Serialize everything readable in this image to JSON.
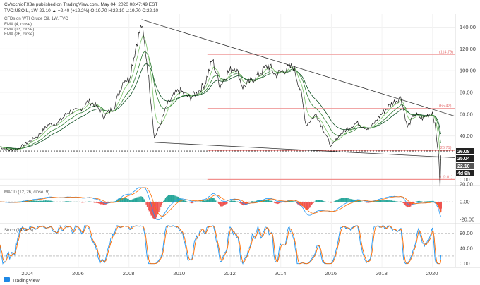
{
  "header": {
    "line1": "CVecchioFX3e published on TradingView.com, May 04, 2020 08:47:49 EST",
    "line2": "TVC:USOIL, 1W  22.10  ▲ +2.40 (+12.2%)  O:19.70  H:22.10  L:19.70  C:22.10",
    "line3": "CFDs on WTI Crude Oil, 1W, TVC",
    "ema_labels": [
      "EMA (4, close)",
      "EMA (13, close)",
      "EMA (26, close)"
    ]
  },
  "footer": {
    "brand": "TradingView"
  },
  "colors": {
    "price": "#1a1a1a",
    "ema4": "#7cc36a",
    "ema13": "#2e7d32",
    "ema26": "#0b4d1f",
    "fib": "#ef5350",
    "trend": "#333333",
    "macd": "#2196f3",
    "signal": "#ff6d00",
    "hist_up": "#26a69a",
    "hist_down": "#ef5350",
    "stoch_k": "#2196f3",
    "stoch_d": "#ff6d00"
  },
  "chart_data": [
    {
      "type": "line",
      "y_ticks": [
        0,
        20,
        40,
        60,
        80,
        100,
        120,
        140
      ],
      "y_tick_labels": [
        "0.00",
        "20.00",
        "40.00",
        "60.00",
        "80.00",
        "100.00",
        "120.00",
        "140.00"
      ],
      "ylim": [
        -5,
        152
      ],
      "x_ticks": [
        2004,
        2006,
        2008,
        2010,
        2012,
        2014,
        2016,
        2018,
        2020
      ],
      "x_tick_labels": [
        "2004",
        "2006",
        "2008",
        "2010",
        "2012",
        "2014",
        "2016",
        "2018",
        "2020"
      ],
      "xlim": [
        2002.9,
        2020.9
      ],
      "series": [
        {
          "x": [
            2002.9,
            2003.2,
            2003.6,
            2004.0,
            2004.4,
            2004.8,
            2005.2,
            2005.6,
            2006.0,
            2006.4,
            2006.7,
            2007.0,
            2007.4,
            2007.8,
            2008.0,
            2008.3,
            2008.5,
            2008.7,
            2008.9,
            2009.0,
            2009.2,
            2009.5,
            2009.8,
            2010.0,
            2010.4,
            2010.7,
            2011.0,
            2011.3,
            2011.6,
            2011.9,
            2012.2,
            2012.5,
            2012.8,
            2013.1,
            2013.5,
            2013.8,
            2014.1,
            2014.5,
            2014.8,
            2015.0,
            2015.4,
            2015.7,
            2016.0,
            2016.3,
            2016.6,
            2017.0,
            2017.5,
            2017.9,
            2018.3,
            2018.75,
            2019.0,
            2019.3,
            2019.6,
            2020.0,
            2020.1,
            2020.2,
            2020.25,
            2020.3,
            2020.33
          ],
          "y": [
            30,
            27,
            28,
            34,
            40,
            50,
            52,
            62,
            63,
            72,
            68,
            58,
            66,
            92,
            92,
            125,
            142,
            110,
            65,
            38,
            48,
            68,
            78,
            82,
            75,
            80,
            88,
            110,
            86,
            98,
            104,
            85,
            90,
            96,
            105,
            96,
            100,
            104,
            80,
            50,
            60,
            45,
            30,
            40,
            46,
            52,
            46,
            58,
            68,
            76,
            48,
            60,
            56,
            62,
            50,
            30,
            20,
            -10,
            22.1
          ]
        }
      ],
      "price_labels": [
        "26.08",
        "25.04",
        "22.10",
        "4d 9h"
      ],
      "fib_labels": [
        "(114.79)",
        "(65.42)",
        "(26.71)",
        "0 (0.01)"
      ],
      "fib_levels": [
        114.79,
        65.42,
        26.71,
        0.01
      ],
      "trendlines": [
        {
          "from": [
            2008.5,
            147
          ],
          "to": [
            2020.9,
            58
          ]
        },
        {
          "from": [
            2009.0,
            34
          ],
          "to": [
            2020.9,
            20
          ]
        },
        {
          "from": [
            2002.9,
            26.1
          ],
          "to": [
            2020.9,
            26.1
          ]
        }
      ]
    },
    {
      "type": "line",
      "title": "MACD (12, 26, close, 9)",
      "y_ticks": [
        20,
        0,
        -20
      ],
      "y_tick_labels": [
        "20.00",
        "0.00",
        "-20.00"
      ],
      "ylim": [
        -24,
        16
      ]
    },
    {
      "type": "line",
      "title": "Stoch (14, 3, 3)",
      "y_ticks": [
        80,
        40,
        0
      ],
      "y_tick_labels": [
        "80.00",
        "40.00",
        "0.00"
      ],
      "ylim": [
        -8,
        100
      ]
    }
  ]
}
